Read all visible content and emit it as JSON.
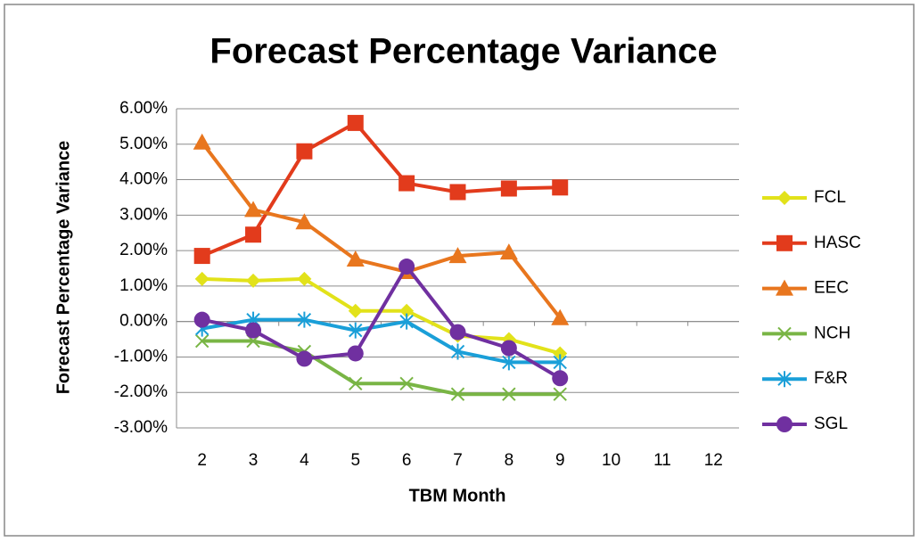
{
  "chart_data": {
    "type": "line",
    "title": "Forecast Percentage Variance",
    "x_label": "TBM Month",
    "y_label": "Forecast Percentage Variance",
    "categories": [
      2,
      3,
      4,
      5,
      6,
      7,
      8,
      9,
      10,
      11,
      12
    ],
    "ylim": [
      -3,
      6
    ],
    "yticks": [
      {
        "value": -3,
        "label": "-3.00%"
      },
      {
        "value": -2,
        "label": "-2.00%"
      },
      {
        "value": -1,
        "label": "-1.00%"
      },
      {
        "value": 0,
        "label": "0.00%"
      },
      {
        "value": 1,
        "label": "1.00%"
      },
      {
        "value": 2,
        "label": "2.00%"
      },
      {
        "value": 3,
        "label": "3.00%"
      },
      {
        "value": 4,
        "label": "4.00%"
      },
      {
        "value": 5,
        "label": "5.00%"
      },
      {
        "value": 6,
        "label": "6.00%"
      }
    ],
    "grid": true,
    "legend": "right",
    "series": [
      {
        "name": "FCL",
        "color": "#e2e21a",
        "marker": "diamond",
        "values": [
          1.2,
          1.15,
          1.2,
          0.3,
          0.3,
          -0.4,
          -0.5,
          -0.9,
          null,
          null,
          null
        ]
      },
      {
        "name": "HASC",
        "color": "#e23b1c",
        "marker": "square",
        "values": [
          1.85,
          2.45,
          4.8,
          5.6,
          3.9,
          3.65,
          3.75,
          3.78,
          null,
          null,
          null
        ]
      },
      {
        "name": "EEC",
        "color": "#e8761e",
        "marker": "triangle",
        "values": [
          5.05,
          3.15,
          2.8,
          1.75,
          1.4,
          1.85,
          1.95,
          0.1,
          null,
          null,
          null
        ]
      },
      {
        "name": "NCH",
        "color": "#79b545",
        "marker": "x",
        "values": [
          -0.55,
          -0.55,
          -0.85,
          -1.75,
          -1.75,
          -2.05,
          -2.05,
          -2.05,
          null,
          null,
          null
        ]
      },
      {
        "name": "F&R",
        "color": "#1a9fd8",
        "marker": "asterisk",
        "values": [
          -0.2,
          0.05,
          0.05,
          -0.25,
          0.0,
          -0.85,
          -1.15,
          -1.15,
          null,
          null,
          null
        ]
      },
      {
        "name": "SGL",
        "color": "#7030a0",
        "marker": "circle",
        "values": [
          0.05,
          -0.25,
          -1.05,
          -0.9,
          1.55,
          -0.3,
          -0.75,
          -1.6,
          null,
          null,
          null
        ]
      }
    ]
  }
}
